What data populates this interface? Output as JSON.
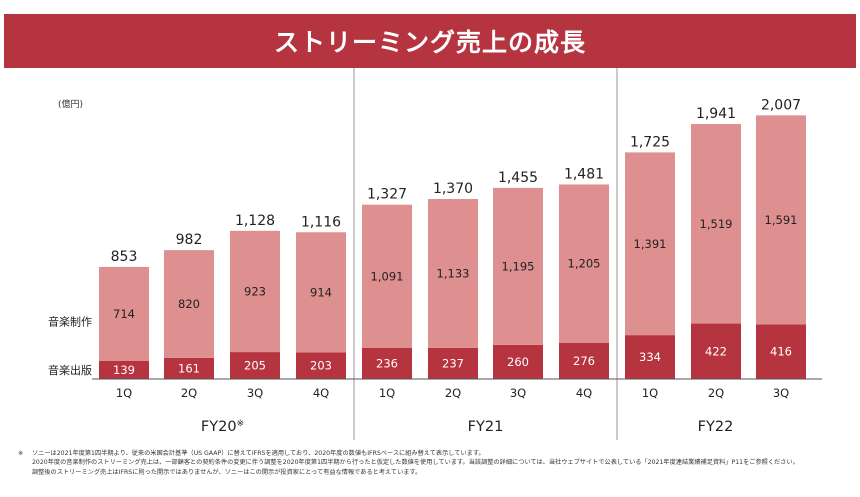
{
  "title": "ストリーミング売上の成長",
  "colors": {
    "title_bg": "#b5343f",
    "music_production": "#de8f8f",
    "music_publishing": "#b5343f"
  },
  "chart_data": {
    "type": "bar",
    "stacked": true,
    "unit_label": "(億円)",
    "categories": [
      "1Q",
      "2Q",
      "3Q",
      "4Q",
      "1Q",
      "2Q",
      "3Q",
      "4Q",
      "1Q",
      "2Q",
      "3Q"
    ],
    "groups": [
      {
        "label": "FY20",
        "mark": "※",
        "count": 4
      },
      {
        "label": "FY21",
        "mark": "",
        "count": 4
      },
      {
        "label": "FY22",
        "mark": "",
        "count": 3
      }
    ],
    "series": [
      {
        "name": "音楽出版",
        "values": [
          139,
          161,
          205,
          203,
          236,
          237,
          260,
          276,
          334,
          422,
          416
        ]
      },
      {
        "name": "音楽制作",
        "values": [
          714,
          820,
          923,
          914,
          1091,
          1133,
          1195,
          1205,
          1391,
          1519,
          1591
        ]
      }
    ],
    "totals": [
      "853",
      "982",
      "1,128",
      "1,116",
      "1,327",
      "1,370",
      "1,455",
      "1,481",
      "1,725",
      "1,941",
      "2,007"
    ],
    "segment_labels": {
      "音楽出版": [
        "139",
        "161",
        "205",
        "203",
        "236",
        "237",
        "260",
        "276",
        "334",
        "422",
        "416"
      ],
      "音楽制作": [
        "714",
        "820",
        "923",
        "914",
        "1,091",
        "1,133",
        "1,195",
        "1,205",
        "1,391",
        "1,519",
        "1,591"
      ]
    },
    "ylim": [
      0,
      2200
    ]
  },
  "footnote_mark": "※",
  "footnotes": [
    "ソニーは2021年度第1四半期より、従来の米国会計基準（US GAAP）に替えてIFRSを適用しており、2020年度の数値もIFRSベースに組み替えて表示しています。",
    "2020年度の音楽制作のストリーミング売上は、一部顧客との契約条件の変更に伴う調整を2020年度第1四半期から行ったと仮定した数値を使用しています。当該調整の詳細については、当社ウェブサイトで公表している「2021年度連結業績補足資料」P11をご参照ください。",
    "調整後のストリーミング売上はIFRSに則った開示ではありませんが、ソニーはこの開示が投資家にとって有益な情報であると考えています。"
  ]
}
